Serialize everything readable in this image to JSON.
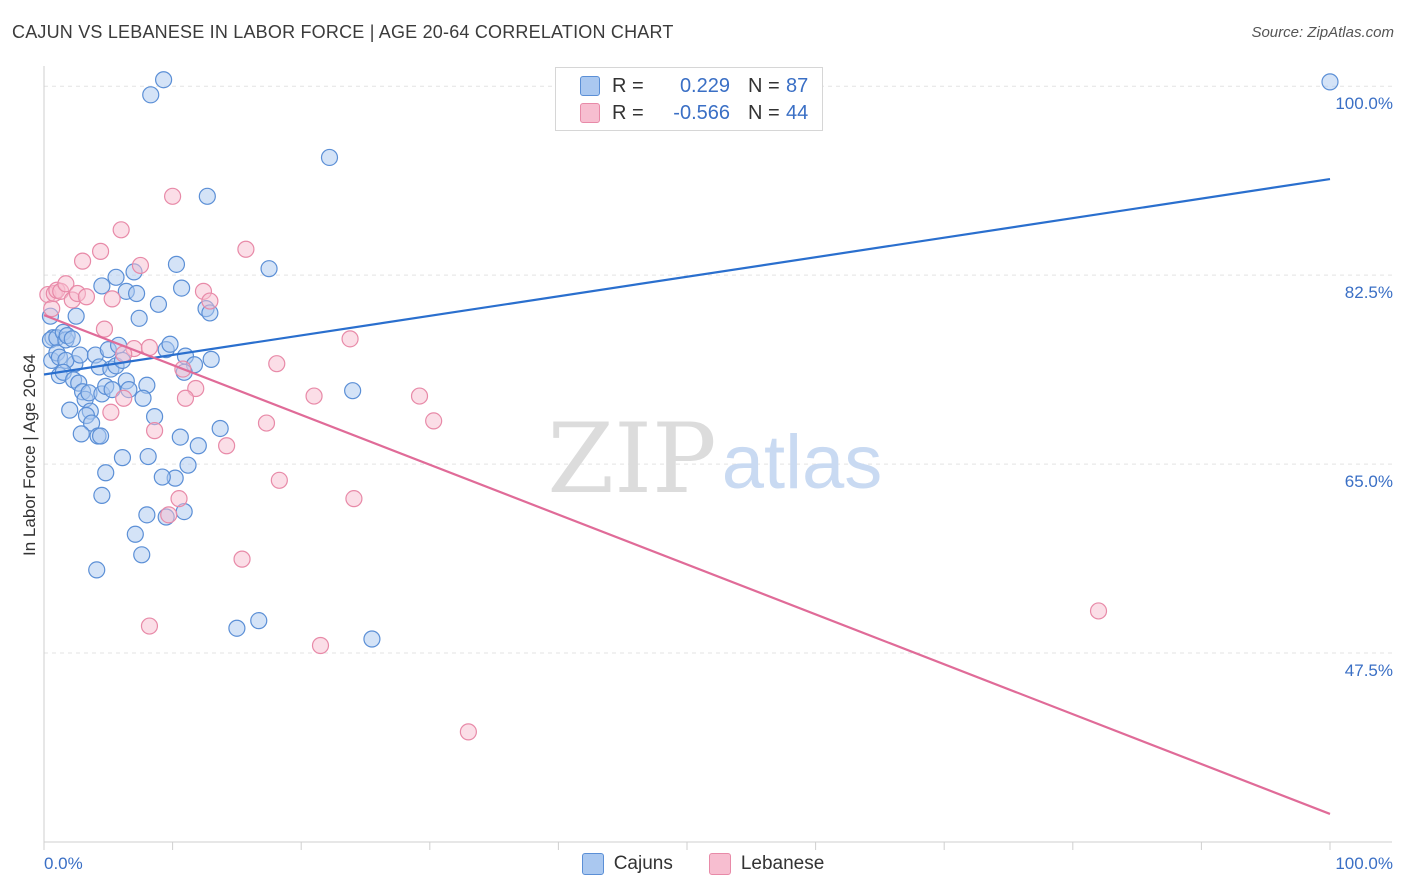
{
  "title": "CAJUN VS LEBANESE IN LABOR FORCE | AGE 20-64 CORRELATION CHART",
  "source": "Source: ZipAtlas.com",
  "watermark": {
    "zip": "ZIP",
    "atlas": "atlas"
  },
  "legend": {
    "rows": [
      {
        "r_label": "R =",
        "r_value": "0.229",
        "n_label": "N =",
        "n_value": "87"
      },
      {
        "r_label": "R =",
        "r_value": "-0.566",
        "n_label": "N =",
        "n_value": "44"
      }
    ]
  },
  "colors": {
    "blue_fill": "#aac8f0",
    "blue_stroke": "#5b8fd6",
    "blue_line": "#2a6fce",
    "pink_fill": "#f7bed0",
    "pink_stroke": "#e88aa8",
    "pink_line": "#e06b98",
    "axis_label": "#3a6fc5",
    "grid": "#e3e3e3"
  },
  "chart_data": {
    "type": "scatter",
    "title": "CAJUN VS LEBANESE IN LABOR FORCE | AGE 20-64 CORRELATION CHART",
    "xlabel": "",
    "ylabel": "In Labor Force | Age 20-64",
    "xlim": [
      0,
      100
    ],
    "ylim": [
      30.0,
      101.5
    ],
    "x_tick_labels": [
      "0.0%",
      "100.0%"
    ],
    "y_ticks": [
      100.0,
      82.5,
      65.0,
      47.5
    ],
    "y_tick_labels": [
      "100.0%",
      "82.5%",
      "65.0%",
      "47.5%"
    ],
    "series": [
      {
        "name": "Cajuns",
        "color": "#aac8f0",
        "trend": {
          "x": [
            0,
            100
          ],
          "y": [
            73.3,
            91.4
          ]
        },
        "points": [
          [
            0.5,
            78.7
          ],
          [
            0.7,
            76.7
          ],
          [
            0.5,
            76.5
          ],
          [
            0.6,
            74.6
          ],
          [
            1.0,
            76.7
          ],
          [
            1.0,
            75.3
          ],
          [
            1.2,
            74.9
          ],
          [
            1.5,
            77.2
          ],
          [
            1.7,
            76.5
          ],
          [
            1.8,
            76.9
          ],
          [
            2.2,
            76.6
          ],
          [
            2.5,
            78.7
          ],
          [
            2.4,
            74.3
          ],
          [
            1.7,
            74.6
          ],
          [
            2.8,
            75.1
          ],
          [
            1.2,
            73.2
          ],
          [
            1.5,
            73.5
          ],
          [
            2.3,
            72.8
          ],
          [
            2.0,
            70.0
          ],
          [
            2.7,
            72.5
          ],
          [
            3.0,
            71.7
          ],
          [
            3.2,
            71.0
          ],
          [
            3.5,
            71.6
          ],
          [
            3.6,
            69.9
          ],
          [
            3.3,
            69.5
          ],
          [
            3.7,
            68.8
          ],
          [
            2.9,
            67.8
          ],
          [
            4.2,
            67.6
          ],
          [
            4.4,
            67.6
          ],
          [
            4.5,
            71.5
          ],
          [
            4.0,
            75.1
          ],
          [
            4.3,
            74.0
          ],
          [
            4.8,
            72.2
          ],
          [
            5.0,
            75.6
          ],
          [
            5.2,
            73.8
          ],
          [
            5.3,
            71.9
          ],
          [
            5.6,
            74.1
          ],
          [
            5.8,
            76.0
          ],
          [
            6.1,
            74.6
          ],
          [
            6.4,
            72.7
          ],
          [
            6.6,
            71.9
          ],
          [
            5.6,
            82.3
          ],
          [
            4.5,
            81.5
          ],
          [
            6.4,
            81.0
          ],
          [
            7.2,
            80.8
          ],
          [
            8.9,
            79.8
          ],
          [
            10.7,
            81.3
          ],
          [
            7.0,
            82.8
          ],
          [
            10.3,
            83.5
          ],
          [
            12.6,
            79.4
          ],
          [
            12.9,
            79.0
          ],
          [
            7.4,
            78.5
          ],
          [
            9.5,
            75.6
          ],
          [
            9.8,
            76.1
          ],
          [
            11.0,
            75.0
          ],
          [
            11.7,
            74.2
          ],
          [
            13.0,
            74.7
          ],
          [
            10.9,
            73.5
          ],
          [
            8.0,
            72.3
          ],
          [
            7.7,
            71.1
          ],
          [
            8.6,
            69.4
          ],
          [
            10.6,
            67.5
          ],
          [
            12.0,
            66.7
          ],
          [
            13.7,
            68.3
          ],
          [
            11.2,
            64.9
          ],
          [
            10.2,
            63.7
          ],
          [
            9.2,
            63.8
          ],
          [
            8.1,
            65.7
          ],
          [
            6.1,
            65.6
          ],
          [
            4.8,
            64.2
          ],
          [
            4.5,
            62.1
          ],
          [
            8.0,
            60.3
          ],
          [
            9.5,
            60.1
          ],
          [
            10.9,
            60.6
          ],
          [
            7.1,
            58.5
          ],
          [
            7.6,
            56.6
          ],
          [
            4.1,
            55.2
          ],
          [
            15.0,
            49.8
          ],
          [
            16.7,
            50.5
          ],
          [
            25.5,
            48.8
          ],
          [
            8.3,
            99.2
          ],
          [
            9.3,
            100.6
          ],
          [
            22.2,
            93.4
          ],
          [
            12.7,
            89.8
          ],
          [
            17.5,
            83.1
          ],
          [
            24.0,
            71.8
          ],
          [
            100,
            100.4
          ]
        ]
      },
      {
        "name": "Lebanese",
        "color": "#f7bed0",
        "trend": {
          "x": [
            0,
            100
          ],
          "y": [
            78.8,
            32.6
          ]
        },
        "points": [
          [
            0.3,
            80.7
          ],
          [
            0.6,
            79.4
          ],
          [
            0.8,
            80.8
          ],
          [
            1.0,
            81.1
          ],
          [
            1.3,
            81.0
          ],
          [
            1.7,
            81.7
          ],
          [
            2.2,
            80.2
          ],
          [
            2.6,
            80.8
          ],
          [
            3.0,
            83.8
          ],
          [
            3.3,
            80.5
          ],
          [
            4.4,
            84.7
          ],
          [
            5.3,
            80.3
          ],
          [
            4.7,
            77.5
          ],
          [
            6.0,
            86.7
          ],
          [
            7.5,
            83.4
          ],
          [
            10.0,
            89.8
          ],
          [
            12.4,
            81.0
          ],
          [
            12.9,
            80.1
          ],
          [
            15.7,
            84.9
          ],
          [
            7.0,
            75.7
          ],
          [
            8.2,
            75.8
          ],
          [
            6.2,
            75.2
          ],
          [
            10.8,
            73.8
          ],
          [
            11.8,
            72.0
          ],
          [
            11.0,
            71.1
          ],
          [
            6.2,
            71.1
          ],
          [
            5.2,
            69.8
          ],
          [
            8.6,
            68.1
          ],
          [
            14.2,
            66.7
          ],
          [
            17.3,
            68.8
          ],
          [
            18.1,
            74.3
          ],
          [
            23.8,
            76.6
          ],
          [
            21.0,
            71.3
          ],
          [
            29.2,
            71.3
          ],
          [
            30.3,
            69.0
          ],
          [
            18.3,
            63.5
          ],
          [
            24.1,
            61.8
          ],
          [
            10.5,
            61.8
          ],
          [
            9.7,
            60.3
          ],
          [
            15.4,
            56.2
          ],
          [
            8.2,
            50.0
          ],
          [
            21.5,
            48.2
          ],
          [
            33.0,
            40.2
          ],
          [
            82.0,
            51.4
          ]
        ]
      }
    ]
  }
}
